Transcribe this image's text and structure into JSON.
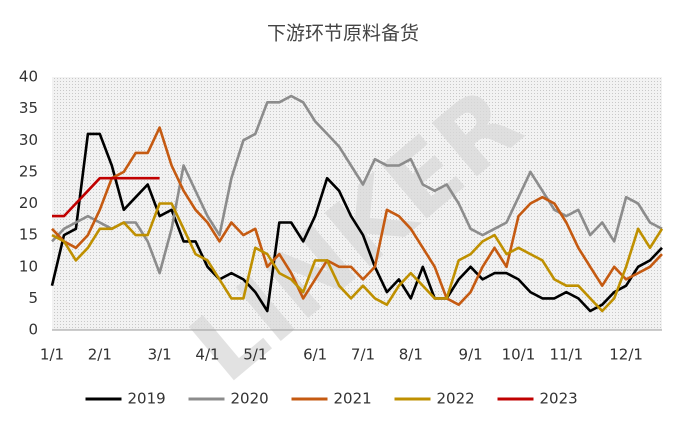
{
  "chart_data": {
    "type": "line",
    "title": "下游环节原料备货",
    "watermark": "LINKER",
    "categories": [
      "1/1",
      null,
      null,
      null,
      "2/1",
      null,
      null,
      null,
      null,
      "3/1",
      null,
      null,
      null,
      "4/1",
      null,
      null,
      null,
      "5/1",
      null,
      null,
      null,
      null,
      "6/1",
      null,
      null,
      null,
      "7/1",
      null,
      null,
      null,
      "8/1",
      null,
      null,
      null,
      null,
      "9/1",
      null,
      null,
      null,
      "10/1",
      null,
      null,
      null,
      "11/1",
      null,
      null,
      null,
      null,
      "12/1",
      null,
      null,
      null
    ],
    "ylim": [
      0,
      40
    ],
    "yticks": [
      0,
      5,
      10,
      15,
      20,
      25,
      30,
      35,
      40
    ],
    "grid": false,
    "series": [
      {
        "name": "2019",
        "color": "#000000",
        "values": [
          7,
          15,
          16,
          31,
          31,
          26,
          19,
          21,
          23,
          18,
          19,
          14,
          14,
          10,
          8,
          9,
          8,
          6,
          3,
          17,
          17,
          14,
          18,
          24,
          22,
          18,
          15,
          10,
          6,
          8,
          5,
          10,
          5,
          5,
          8,
          10,
          8,
          9,
          9,
          8,
          6,
          5,
          5,
          6,
          5,
          3,
          4,
          6,
          7,
          10,
          11,
          13
        ]
      },
      {
        "name": "2020",
        "color": "#8c8c8c",
        "values": [
          14,
          16,
          17,
          18,
          17,
          16,
          17,
          17,
          14,
          9,
          16,
          26,
          22,
          18,
          15,
          24,
          30,
          31,
          36,
          36,
          37,
          36,
          33,
          31,
          29,
          26,
          23,
          27,
          26,
          26,
          27,
          23,
          22,
          23,
          20,
          16,
          15,
          16,
          17,
          21,
          25,
          22,
          19,
          18,
          19,
          15,
          17,
          14,
          21,
          20,
          17,
          16
        ]
      },
      {
        "name": "2021",
        "color": "#c55a11",
        "values": [
          16,
          14,
          13,
          15,
          19,
          24,
          25,
          28,
          28,
          32,
          26,
          22,
          19,
          17,
          14,
          17,
          15,
          16,
          10,
          12,
          9,
          5,
          8,
          11,
          10,
          10,
          8,
          10,
          19,
          18,
          16,
          13,
          10,
          5,
          4,
          6,
          10,
          13,
          10,
          18,
          20,
          21,
          20,
          17,
          13,
          10,
          7,
          10,
          8,
          9,
          10,
          12
        ]
      },
      {
        "name": "2022",
        "color": "#bf9000",
        "values": [
          15,
          14,
          11,
          13,
          16,
          16,
          17,
          15,
          15,
          20,
          20,
          16,
          12,
          11,
          8,
          5,
          5,
          13,
          12,
          9,
          8,
          6,
          11,
          11,
          7,
          5,
          7,
          5,
          4,
          7,
          9,
          7,
          5,
          5,
          11,
          12,
          14,
          15,
          12,
          13,
          12,
          11,
          8,
          7,
          7,
          5,
          3,
          5,
          10,
          16,
          13,
          16
        ]
      },
      {
        "name": "2023",
        "color": "#c00000",
        "values": [
          18,
          18,
          20,
          22,
          24,
          24,
          24,
          24,
          24,
          24,
          null,
          null,
          null,
          null,
          null,
          null,
          null,
          null,
          null,
          null,
          null,
          null,
          null,
          null,
          null,
          null,
          null,
          null,
          null,
          null,
          null,
          null,
          null,
          null,
          null,
          null,
          null,
          null,
          null,
          null,
          null,
          null,
          null,
          null,
          null,
          null,
          null,
          null,
          null,
          null,
          null,
          null
        ]
      }
    ]
  }
}
